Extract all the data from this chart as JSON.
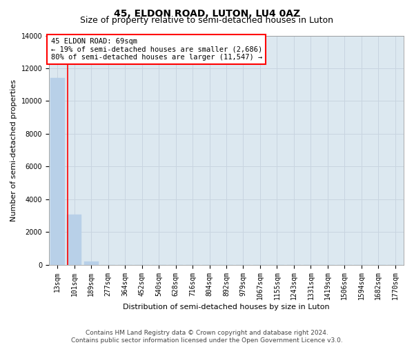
{
  "title": "45, ELDON ROAD, LUTON, LU4 0AZ",
  "subtitle": "Size of property relative to semi-detached houses in Luton",
  "xlabel": "Distribution of semi-detached houses by size in Luton",
  "ylabel": "Number of semi-detached properties",
  "categories": [
    "13sqm",
    "101sqm",
    "189sqm",
    "277sqm",
    "364sqm",
    "452sqm",
    "540sqm",
    "628sqm",
    "716sqm",
    "804sqm",
    "892sqm",
    "979sqm",
    "1067sqm",
    "1155sqm",
    "1243sqm",
    "1331sqm",
    "1419sqm",
    "1506sqm",
    "1594sqm",
    "1682sqm",
    "1770sqm"
  ],
  "bar_values": [
    11400,
    3050,
    180,
    0,
    0,
    0,
    0,
    0,
    0,
    0,
    0,
    0,
    0,
    0,
    0,
    0,
    0,
    0,
    0,
    0,
    0
  ],
  "bar_color": "#b8d0e8",
  "bar_edgecolor": "#b8d0e8",
  "grid_color": "#c8d4e0",
  "background_color": "#dce8f0",
  "ylim": [
    0,
    14000
  ],
  "yticks": [
    0,
    2000,
    4000,
    6000,
    8000,
    10000,
    12000,
    14000
  ],
  "red_line_x": 0.62,
  "annotation_text": "45 ELDON ROAD: 69sqm\n← 19% of semi-detached houses are smaller (2,686)\n80% of semi-detached houses are larger (11,547) →",
  "footer_line1": "Contains HM Land Registry data © Crown copyright and database right 2024.",
  "footer_line2": "Contains public sector information licensed under the Open Government Licence v3.0.",
  "title_fontsize": 10,
  "subtitle_fontsize": 9,
  "label_fontsize": 8,
  "tick_fontsize": 7,
  "footer_fontsize": 6.5,
  "ann_fontsize": 7.5
}
